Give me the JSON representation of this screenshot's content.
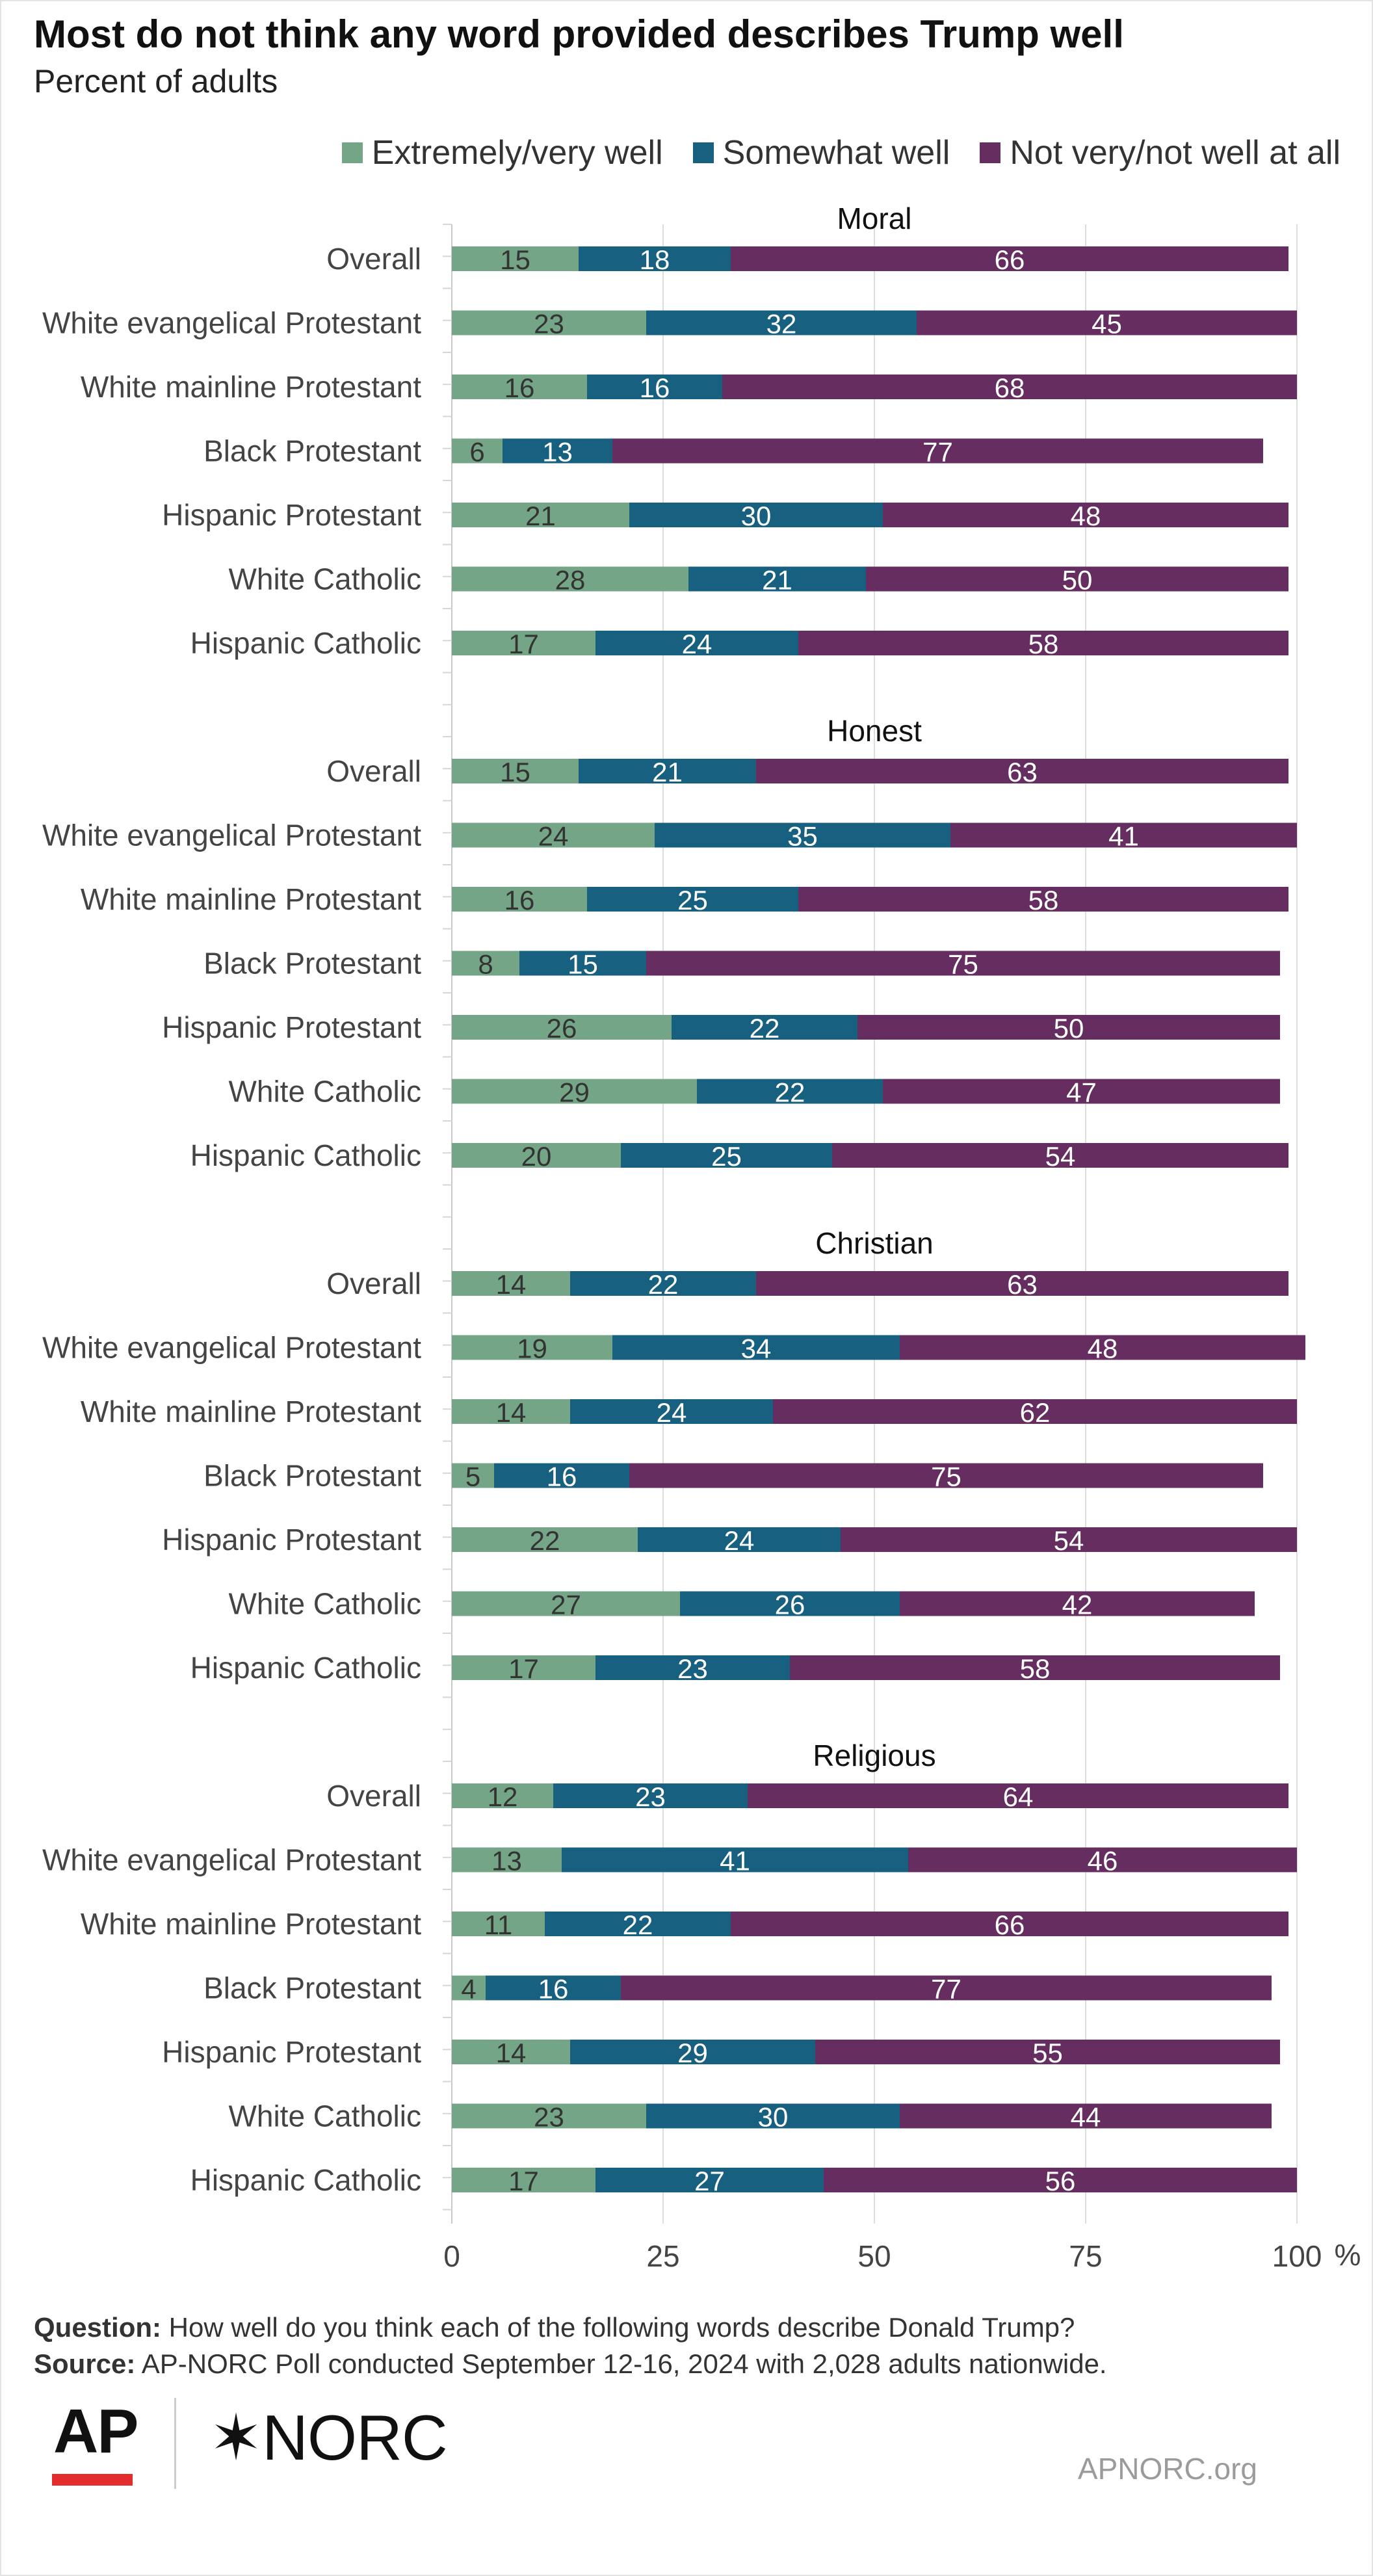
{
  "header": {
    "title": "Most do not think any word provided describes Trump well",
    "subtitle": "Percent of adults"
  },
  "colors": {
    "extremely": "#74a586",
    "somewhat": "#17607f",
    "not_well": "#662d60",
    "grid": "#dddddd",
    "label_dark": "#333333",
    "label_light": "#ffffff"
  },
  "legend": [
    {
      "label": "Extremely/very well",
      "color": "#74a586"
    },
    {
      "label": "Somewhat well",
      "color": "#17607f"
    },
    {
      "label": "Not very/not well at all",
      "color": "#662d60"
    }
  ],
  "chart_data": {
    "type": "bar",
    "orientation": "horizontal",
    "stacked": true,
    "xlim": [
      0,
      100
    ],
    "x_ticks": [
      "0",
      "25",
      "50",
      "75",
      "100"
    ],
    "x_unit": "%",
    "series_names": [
      "Extremely/very well",
      "Somewhat well",
      "Not very/not well at all"
    ],
    "panels": [
      {
        "title": "Moral",
        "rows": [
          {
            "label": "Overall",
            "values": [
              15,
              18,
              66
            ]
          },
          {
            "label": "White evangelical Protestant",
            "values": [
              23,
              32,
              45
            ]
          },
          {
            "label": "White mainline Protestant",
            "values": [
              16,
              16,
              68
            ]
          },
          {
            "label": "Black Protestant",
            "values": [
              6,
              13,
              77
            ]
          },
          {
            "label": "Hispanic Protestant",
            "values": [
              21,
              30,
              48
            ]
          },
          {
            "label": "White Catholic",
            "values": [
              28,
              21,
              50
            ]
          },
          {
            "label": "Hispanic Catholic",
            "values": [
              17,
              24,
              58
            ]
          }
        ]
      },
      {
        "title": "Honest",
        "rows": [
          {
            "label": "Overall",
            "values": [
              15,
              21,
              63
            ]
          },
          {
            "label": "White evangelical Protestant",
            "values": [
              24,
              35,
              41
            ]
          },
          {
            "label": "White mainline Protestant",
            "values": [
              16,
              25,
              58
            ]
          },
          {
            "label": "Black Protestant",
            "values": [
              8,
              15,
              75
            ]
          },
          {
            "label": "Hispanic Protestant",
            "values": [
              26,
              22,
              50
            ]
          },
          {
            "label": "White Catholic",
            "values": [
              29,
              22,
              47
            ]
          },
          {
            "label": "Hispanic Catholic",
            "values": [
              20,
              25,
              54
            ]
          }
        ]
      },
      {
        "title": "Christian",
        "rows": [
          {
            "label": "Overall",
            "values": [
              14,
              22,
              63
            ]
          },
          {
            "label": "White evangelical Protestant",
            "values": [
              19,
              34,
              48
            ]
          },
          {
            "label": "White mainline Protestant",
            "values": [
              14,
              24,
              62
            ]
          },
          {
            "label": "Black Protestant",
            "values": [
              5,
              16,
              75
            ]
          },
          {
            "label": "Hispanic Protestant",
            "values": [
              22,
              24,
              54
            ]
          },
          {
            "label": "White Catholic",
            "values": [
              27,
              26,
              42
            ]
          },
          {
            "label": "Hispanic  Catholic",
            "values": [
              17,
              23,
              58
            ]
          }
        ]
      },
      {
        "title": "Religious",
        "rows": [
          {
            "label": "Overall",
            "values": [
              12,
              23,
              64
            ]
          },
          {
            "label": "White evangelical Protestant",
            "values": [
              13,
              41,
              46
            ]
          },
          {
            "label": "White mainline Protestant",
            "values": [
              11,
              22,
              66
            ]
          },
          {
            "label": "Black Protestant",
            "values": [
              4,
              16,
              77
            ]
          },
          {
            "label": "Hispanic Protestant",
            "values": [
              14,
              29,
              55
            ]
          },
          {
            "label": "White Catholic",
            "values": [
              23,
              30,
              44
            ]
          },
          {
            "label": "Hispanic Catholic",
            "values": [
              17,
              27,
              56
            ]
          }
        ]
      }
    ]
  },
  "footer": {
    "question_label": "Question:",
    "question_text": "How well do you think each of the following words describe Donald Trump?",
    "source_label": "Source:",
    "source_text": "AP-NORC Poll conducted September 12-16, 2024 with 2,028 adults nationwide.",
    "logo_ap": "AP",
    "logo_norc": "✶NORC",
    "url": "APNORC.org"
  }
}
